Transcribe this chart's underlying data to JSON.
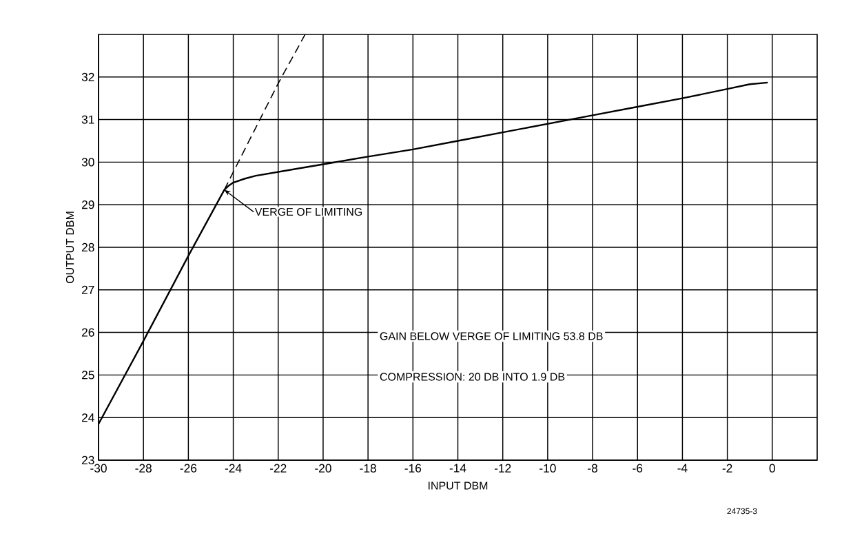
{
  "chart_data": {
    "type": "line",
    "xlabel": "INPUT DBM",
    "ylabel": "OUTPUT DBM",
    "xlim": [
      -30,
      2
    ],
    "ylim": [
      23,
      33
    ],
    "xticks": [
      -30,
      -28,
      -26,
      -24,
      -22,
      -20,
      -18,
      -16,
      -14,
      -12,
      -10,
      -8,
      -6,
      -4,
      -2,
      0
    ],
    "yticks": [
      23,
      24,
      25,
      26,
      27,
      28,
      29,
      30,
      31,
      32
    ],
    "grid": true,
    "marker": "none",
    "series": [
      {
        "color": "#000000",
        "line_style": "solid",
        "x": [
          -30,
          -28,
          -26,
          -24.4,
          -24.2,
          -24,
          -23.5,
          -23,
          -22,
          -21,
          -20,
          -18,
          -16,
          -14,
          -12,
          -10,
          -8,
          -6,
          -4,
          -2,
          -1,
          -0.2
        ],
        "values": [
          23.85,
          25.8,
          27.8,
          29.35,
          29.45,
          29.52,
          29.61,
          29.68,
          29.77,
          29.86,
          29.95,
          30.13,
          30.3,
          30.5,
          30.7,
          30.9,
          31.1,
          31.3,
          31.5,
          31.72,
          31.83,
          31.87
        ]
      },
      {
        "color": "#000000",
        "line_style": "dashed",
        "x": [
          -24.4,
          -22,
          -20.8
        ],
        "values": [
          29.35,
          31.85,
          33
        ]
      }
    ],
    "annotations": [
      {
        "text": "VERGE OF LIMITING",
        "x": -24.4,
        "y": 29.35
      },
      "GAIN BELOW VERGE OF LIMITING 53.8 DB",
      "COMPRESSION: 20 DB INTO 1.9 DB",
      "24735-3"
    ]
  }
}
